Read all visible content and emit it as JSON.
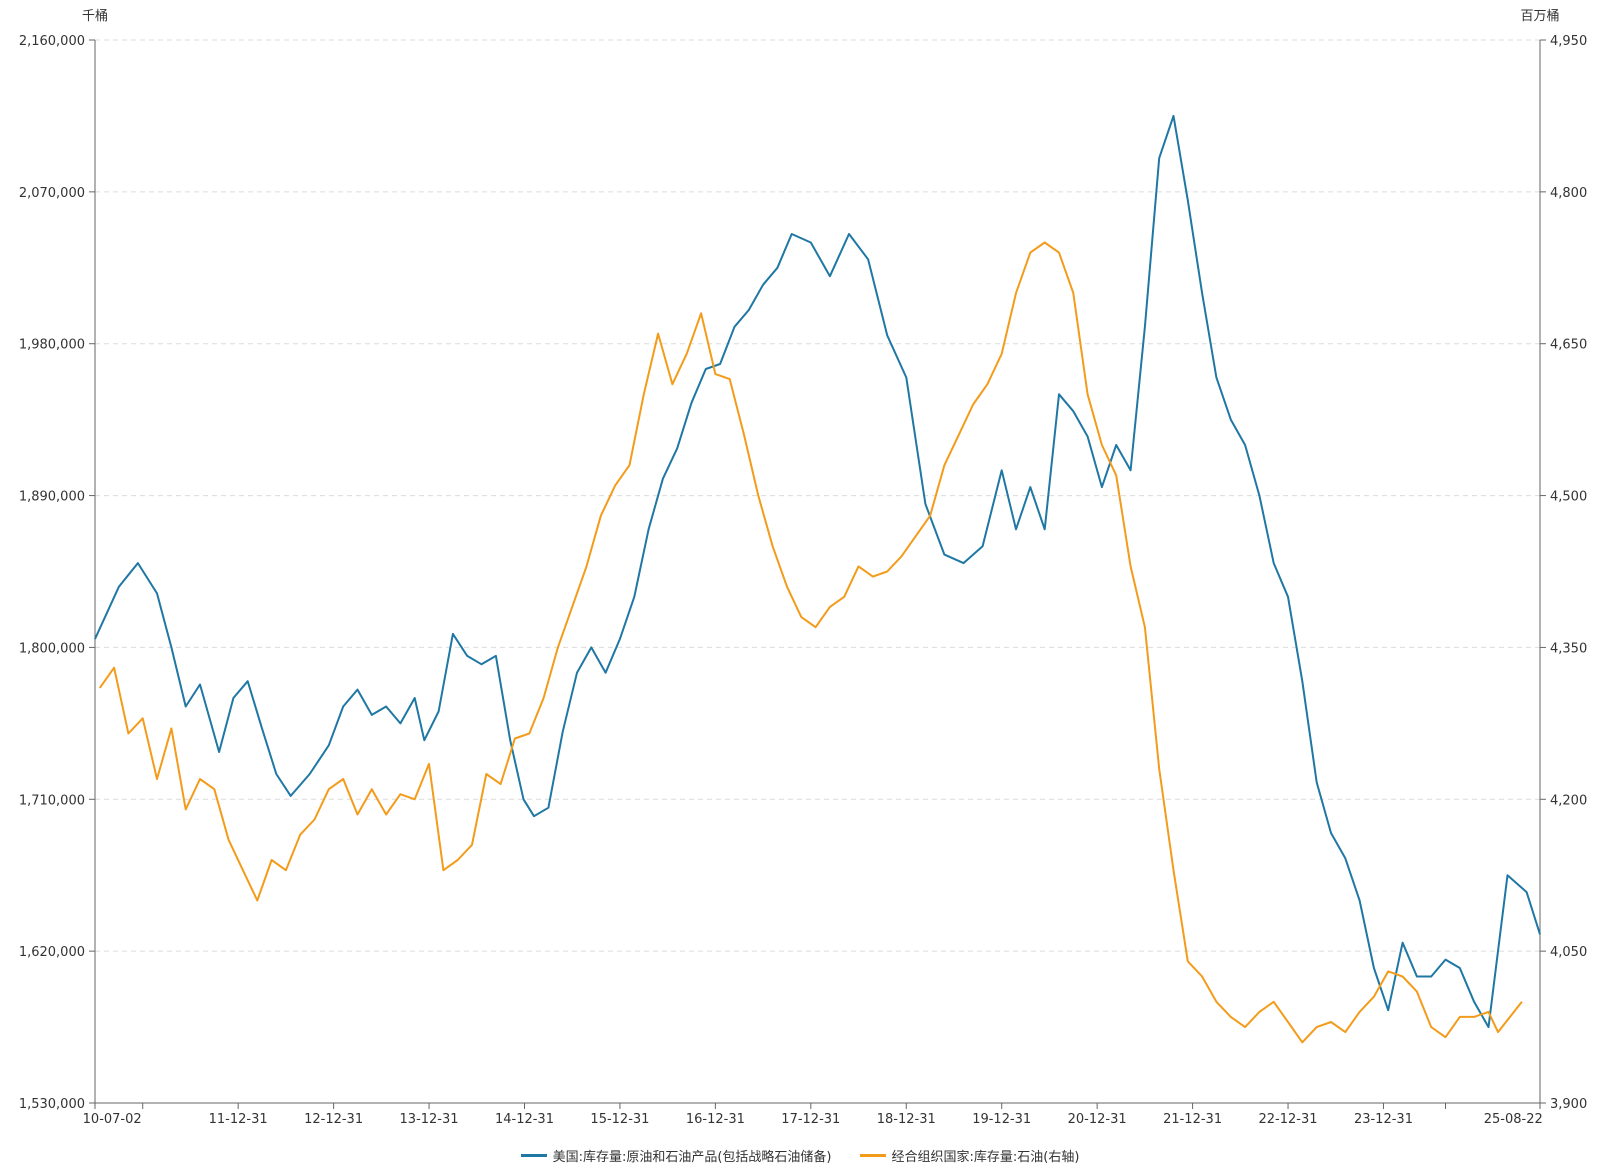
{
  "chart_data": {
    "type": "line",
    "left_unit": "千桶",
    "right_unit": "百万桶",
    "x_tick_labels": [
      "10-07-02",
      "11-12-31",
      "12-12-31",
      "13-12-31",
      "14-12-31",
      "15-12-31",
      "16-12-31",
      "17-12-31",
      "18-12-31",
      "19-12-31",
      "20-12-31",
      "21-12-31",
      "22-12-31",
      "23-12-31",
      "25-08-22"
    ],
    "y_left": {
      "min": 1530000,
      "max": 2160000,
      "ticks": [
        1530000,
        1620000,
        1710000,
        1800000,
        1890000,
        1980000,
        2070000,
        2160000
      ],
      "tick_labels": [
        "1,530,000",
        "1,620,000",
        "1,710,000",
        "1,800,000",
        "1,890,000",
        "1,980,000",
        "2,070,000",
        "2,160,000"
      ]
    },
    "y_right": {
      "min": 3900,
      "max": 4950,
      "ticks": [
        3900,
        4050,
        4200,
        4350,
        4500,
        4650,
        4800,
        4950
      ],
      "tick_labels": [
        "3,900",
        "4,050",
        "4,200",
        "4,350",
        "4,500",
        "4,650",
        "4,800",
        "4,950"
      ]
    },
    "grid": true,
    "legend_position": "bottom",
    "series": [
      {
        "name": "美国:库存量:原油和石油产品(包括战略石油储备)",
        "axis": "left",
        "color": "#1f77a4",
        "x": [
          2010.5,
          2010.75,
          2010.95,
          2011.15,
          2011.3,
          2011.45,
          2011.6,
          2011.8,
          2011.95,
          2012.1,
          2012.25,
          2012.4,
          2012.55,
          2012.75,
          2012.95,
          2013.1,
          2013.25,
          2013.4,
          2013.55,
          2013.7,
          2013.85,
          2013.95,
          2014.1,
          2014.25,
          2014.4,
          2014.55,
          2014.7,
          2014.85,
          2014.99,
          2015.1,
          2015.25,
          2015.4,
          2015.55,
          2015.7,
          2015.85,
          2016.0,
          2016.15,
          2016.3,
          2016.45,
          2016.6,
          2016.75,
          2016.9,
          2017.05,
          2017.2,
          2017.35,
          2017.5,
          2017.65,
          2017.8,
          2018.0,
          2018.2,
          2018.4,
          2018.6,
          2018.8,
          2019.0,
          2019.2,
          2019.4,
          2019.6,
          2019.8,
          2020.0,
          2020.15,
          2020.3,
          2020.45,
          2020.6,
          2020.75,
          2020.9,
          2021.05,
          2021.2,
          2021.35,
          2021.5,
          2021.65,
          2021.8,
          2021.95,
          2022.1,
          2022.25,
          2022.4,
          2022.55,
          2022.7,
          2022.85,
          2023.0,
          2023.15,
          2023.3,
          2023.45,
          2023.6,
          2023.75,
          2023.9,
          2024.05,
          2024.2,
          2024.35,
          2024.5,
          2024.65,
          2024.8,
          2024.95,
          2025.1,
          2025.3,
          2025.5,
          2025.64
        ],
        "values": [
          1805000,
          1836000,
          1850000,
          1832000,
          1800000,
          1765000,
          1778000,
          1738000,
          1770000,
          1780000,
          1752000,
          1725000,
          1712000,
          1725000,
          1742000,
          1765000,
          1775000,
          1760000,
          1765000,
          1755000,
          1770000,
          1745000,
          1762000,
          1808000,
          1795000,
          1790000,
          1795000,
          1745000,
          1710000,
          1700000,
          1705000,
          1750000,
          1785000,
          1800000,
          1785000,
          1805000,
          1830000,
          1870000,
          1900000,
          1918000,
          1945000,
          1965000,
          1968000,
          1990000,
          2000000,
          2015000,
          2025000,
          2045000,
          2040000,
          2020000,
          2045000,
          2030000,
          1985000,
          1960000,
          1885000,
          1855000,
          1850000,
          1860000,
          1905000,
          1870000,
          1895000,
          1870000,
          1950000,
          1940000,
          1925000,
          1895000,
          1920000,
          1905000,
          1990000,
          2090000,
          2115000,
          2065000,
          2010000,
          1960000,
          1935000,
          1920000,
          1890000,
          1850000,
          1830000,
          1780000,
          1720000,
          1690000,
          1675000,
          1650000,
          1610000,
          1585000,
          1625000,
          1605000,
          1605000,
          1615000,
          1610000,
          1590000,
          1575000,
          1665000,
          1655000,
          1630000
        ]
      },
      {
        "name": "经合组织国家:库存量:石油(右轴)",
        "axis": "right",
        "color": "#f39b1a",
        "x": [
          2010.55,
          2010.7,
          2010.85,
          2011.0,
          2011.15,
          2011.3,
          2011.45,
          2011.6,
          2011.75,
          2011.9,
          2012.05,
          2012.2,
          2012.35,
          2012.5,
          2012.65,
          2012.8,
          2012.95,
          2013.1,
          2013.25,
          2013.4,
          2013.55,
          2013.7,
          2013.85,
          2014.0,
          2014.15,
          2014.3,
          2014.45,
          2014.6,
          2014.75,
          2014.9,
          2015.05,
          2015.2,
          2015.35,
          2015.5,
          2015.65,
          2015.8,
          2015.95,
          2016.1,
          2016.25,
          2016.4,
          2016.55,
          2016.7,
          2016.85,
          2017.0,
          2017.15,
          2017.3,
          2017.45,
          2017.6,
          2017.75,
          2017.9,
          2018.05,
          2018.2,
          2018.35,
          2018.5,
          2018.65,
          2018.8,
          2018.95,
          2019.1,
          2019.25,
          2019.4,
          2019.55,
          2019.7,
          2019.85,
          2020.0,
          2020.15,
          2020.3,
          2020.45,
          2020.6,
          2020.75,
          2020.9,
          2021.05,
          2021.2,
          2021.35,
          2021.5,
          2021.65,
          2021.8,
          2021.95,
          2022.1,
          2022.25,
          2022.4,
          2022.55,
          2022.7,
          2022.85,
          2023.0,
          2023.15,
          2023.3,
          2023.45,
          2023.6,
          2023.75,
          2023.9,
          2024.05,
          2024.2,
          2024.35,
          2024.5,
          2024.65,
          2024.8,
          2024.95,
          2025.1,
          2025.2,
          2025.45
        ],
        "values": [
          4310,
          4330,
          4265,
          4280,
          4220,
          4270,
          4190,
          4220,
          4210,
          4160,
          4130,
          4100,
          4140,
          4130,
          4165,
          4180,
          4210,
          4220,
          4185,
          4210,
          4185,
          4205,
          4200,
          4235,
          4130,
          4140,
          4155,
          4225,
          4215,
          4260,
          4265,
          4300,
          4350,
          4390,
          4430,
          4480,
          4510,
          4530,
          4600,
          4660,
          4610,
          4640,
          4680,
          4620,
          4615,
          4560,
          4500,
          4450,
          4410,
          4380,
          4370,
          4390,
          4400,
          4430,
          4420,
          4425,
          4440,
          4460,
          4480,
          4530,
          4560,
          4590,
          4610,
          4640,
          4700,
          4740,
          4750,
          4740,
          4700,
          4600,
          4550,
          4520,
          4430,
          4370,
          4230,
          4130,
          4040,
          4025,
          4000,
          3985,
          3975,
          3990,
          4000,
          3980,
          3960,
          3975,
          3980,
          3970,
          3990,
          4005,
          4030,
          4025,
          4010,
          3975,
          3965,
          3985,
          3985,
          3990,
          3970,
          4000
        ]
      }
    ]
  }
}
